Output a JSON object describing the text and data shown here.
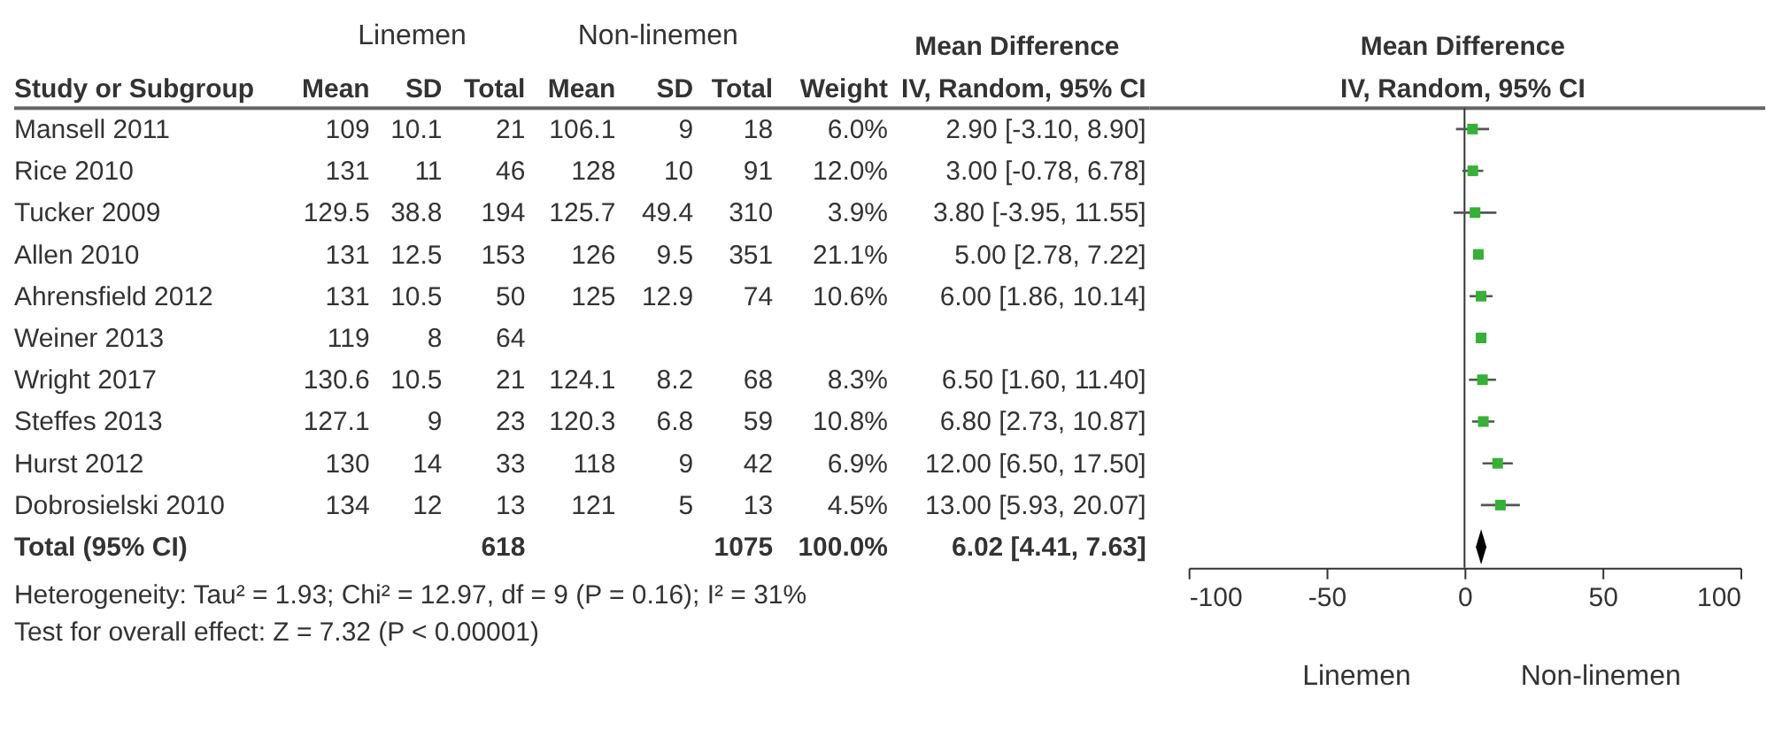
{
  "chart_data": [
    {
      "type": "other",
      "ylabel": "Study or Subgroup",
      "categories": [
        "Mean",
        "SD",
        "Total",
        "Mean",
        "SD",
        "Total",
        "Weight",
        "IV, Random, 95% CI"
      ],
      "y_categories": [
        "Mansell 2011",
        "Rice 2010",
        "Tucker 2009",
        "Allen 2010",
        "Ahrensfield 2012",
        "Weiner 2013",
        "Wright 2017",
        "Steffes 2013",
        "Hurst 2012",
        "Dobrosielski 2010",
        "Total (95% CI)"
      ],
      "cell_labels": [
        [
          "109",
          "10.1",
          "21",
          "106.1",
          "9",
          "18",
          "6.0%",
          "2.90 [-3.10, 8.90]"
        ],
        [
          "131",
          "11",
          "46",
          "128",
          "10",
          "91",
          "12.0%",
          "3.00 [-0.78, 6.78]"
        ],
        [
          "129.5",
          "38.8",
          "194",
          "125.7",
          "49.4",
          "310",
          "3.9%",
          "3.80 [-3.95, 11.55]"
        ],
        [
          "131",
          "12.5",
          "153",
          "126",
          "9.5",
          "351",
          "21.1%",
          "5.00 [2.78, 7.22]"
        ],
        [
          "131",
          "10.5",
          "50",
          "125",
          "12.9",
          "74",
          "10.6%",
          "6.00 [1.86, 10.14]"
        ],
        [
          "119",
          "8",
          "64",
          null,
          null,
          null,
          null,
          null
        ],
        [
          "130.6",
          "10.5",
          "21",
          "124.1",
          "8.2",
          "68",
          "8.3%",
          "6.50 [1.60, 11.40]"
        ],
        [
          "127.1",
          "9",
          "23",
          "120.3",
          "6.8",
          "59",
          "10.8%",
          "6.80 [2.73, 10.87]"
        ],
        [
          "130",
          "14",
          "33",
          "118",
          "9",
          "42",
          "6.9%",
          "12.00 [6.50, 17.50]"
        ],
        [
          "134",
          "12",
          "13",
          "121",
          "5",
          "13",
          "4.5%",
          "13.00 [5.93, 20.07]"
        ],
        [
          null,
          null,
          "618",
          null,
          null,
          "1075",
          "100.0%",
          "6.02 [4.41, 7.63]"
        ]
      ],
      "annotations": [
        "Linemen",
        "Non-linemen",
        "Mean Difference",
        "Heterogeneity: Tau² = 1.93; Chi² = 12.97, df = 9 (P = 0.16); I² = 31%",
        "Test for overall effect: Z = 7.32 (P < 0.00001)"
      ]
    },
    {
      "type": "scatter",
      "orientation": "horizontal",
      "title": "Mean Difference",
      "subtitle": "IV, Random, 95% CI",
      "categories": [
        null,
        null,
        null,
        null,
        null,
        null,
        null,
        null,
        null,
        null,
        null
      ],
      "series": [
        {
          "color": "#33b233",
          "marker": "square",
          "values": [
            2.9,
            3.0,
            3.8,
            5.0,
            6.0,
            6,
            6.5,
            6.8,
            12.0,
            13.0,
            null
          ],
          "errors": [
            [
              -3.1,
              8.9
            ],
            [
              -0.78,
              6.78
            ],
            [
              -3.95,
              11.55
            ],
            null,
            [
              1.86,
              10.14
            ],
            null,
            [
              1.6,
              11.4
            ],
            [
              2.73,
              10.87
            ],
            [
              6.5,
              17.5
            ],
            [
              5.93,
              20.07
            ],
            null
          ]
        },
        {
          "color": "#000000",
          "marker": "diamond",
          "values": [
            null,
            null,
            null,
            null,
            null,
            null,
            null,
            null,
            null,
            null,
            6.02
          ]
        }
      ],
      "xlim": [
        -100,
        100
      ],
      "xticks": [
        -100,
        -50,
        0,
        50,
        100
      ],
      "ref_lines": [
        {
          "axis": "x",
          "value": 0
        }
      ],
      "tick_labels": "x",
      "annotations": [
        "Linemen",
        "Non-linemen"
      ]
    }
  ]
}
